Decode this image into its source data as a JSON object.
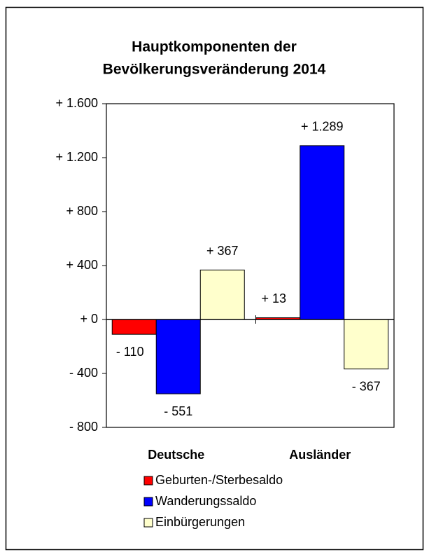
{
  "chart_data": {
    "type": "bar",
    "title": [
      "Hauptkomponenten der",
      "Bevölkerungsveränderung 2014"
    ],
    "categories": [
      "Deutsche",
      "Ausländer"
    ],
    "series": [
      {
        "name": "Geburten-/Sterbesaldo",
        "color": "#ff0000",
        "values": [
          -110,
          13
        ],
        "value_labels": [
          "- 110",
          "+ 13"
        ]
      },
      {
        "name": "Wanderungssaldo",
        "color": "#0000ff",
        "values": [
          -551,
          1289
        ],
        "value_labels": [
          "- 551",
          "+ 1.289"
        ]
      },
      {
        "name": "Einbürgerungen",
        "color": "#ffffcc",
        "values": [
          367,
          -367
        ],
        "value_labels": [
          "+ 367",
          "- 367"
        ]
      }
    ],
    "ylim": [
      -800,
      1600
    ],
    "yticks": [
      {
        "value": -800,
        "label": "- 800"
      },
      {
        "value": -400,
        "label": "- 400"
      },
      {
        "value": 0,
        "label": "+ 0"
      },
      {
        "value": 400,
        "label": "+ 400"
      },
      {
        "value": 800,
        "label": "+ 800"
      },
      {
        "value": 1200,
        "label": "+ 1.200"
      },
      {
        "value": 1600,
        "label": "+ 1.600"
      }
    ],
    "legend": "bottom"
  }
}
